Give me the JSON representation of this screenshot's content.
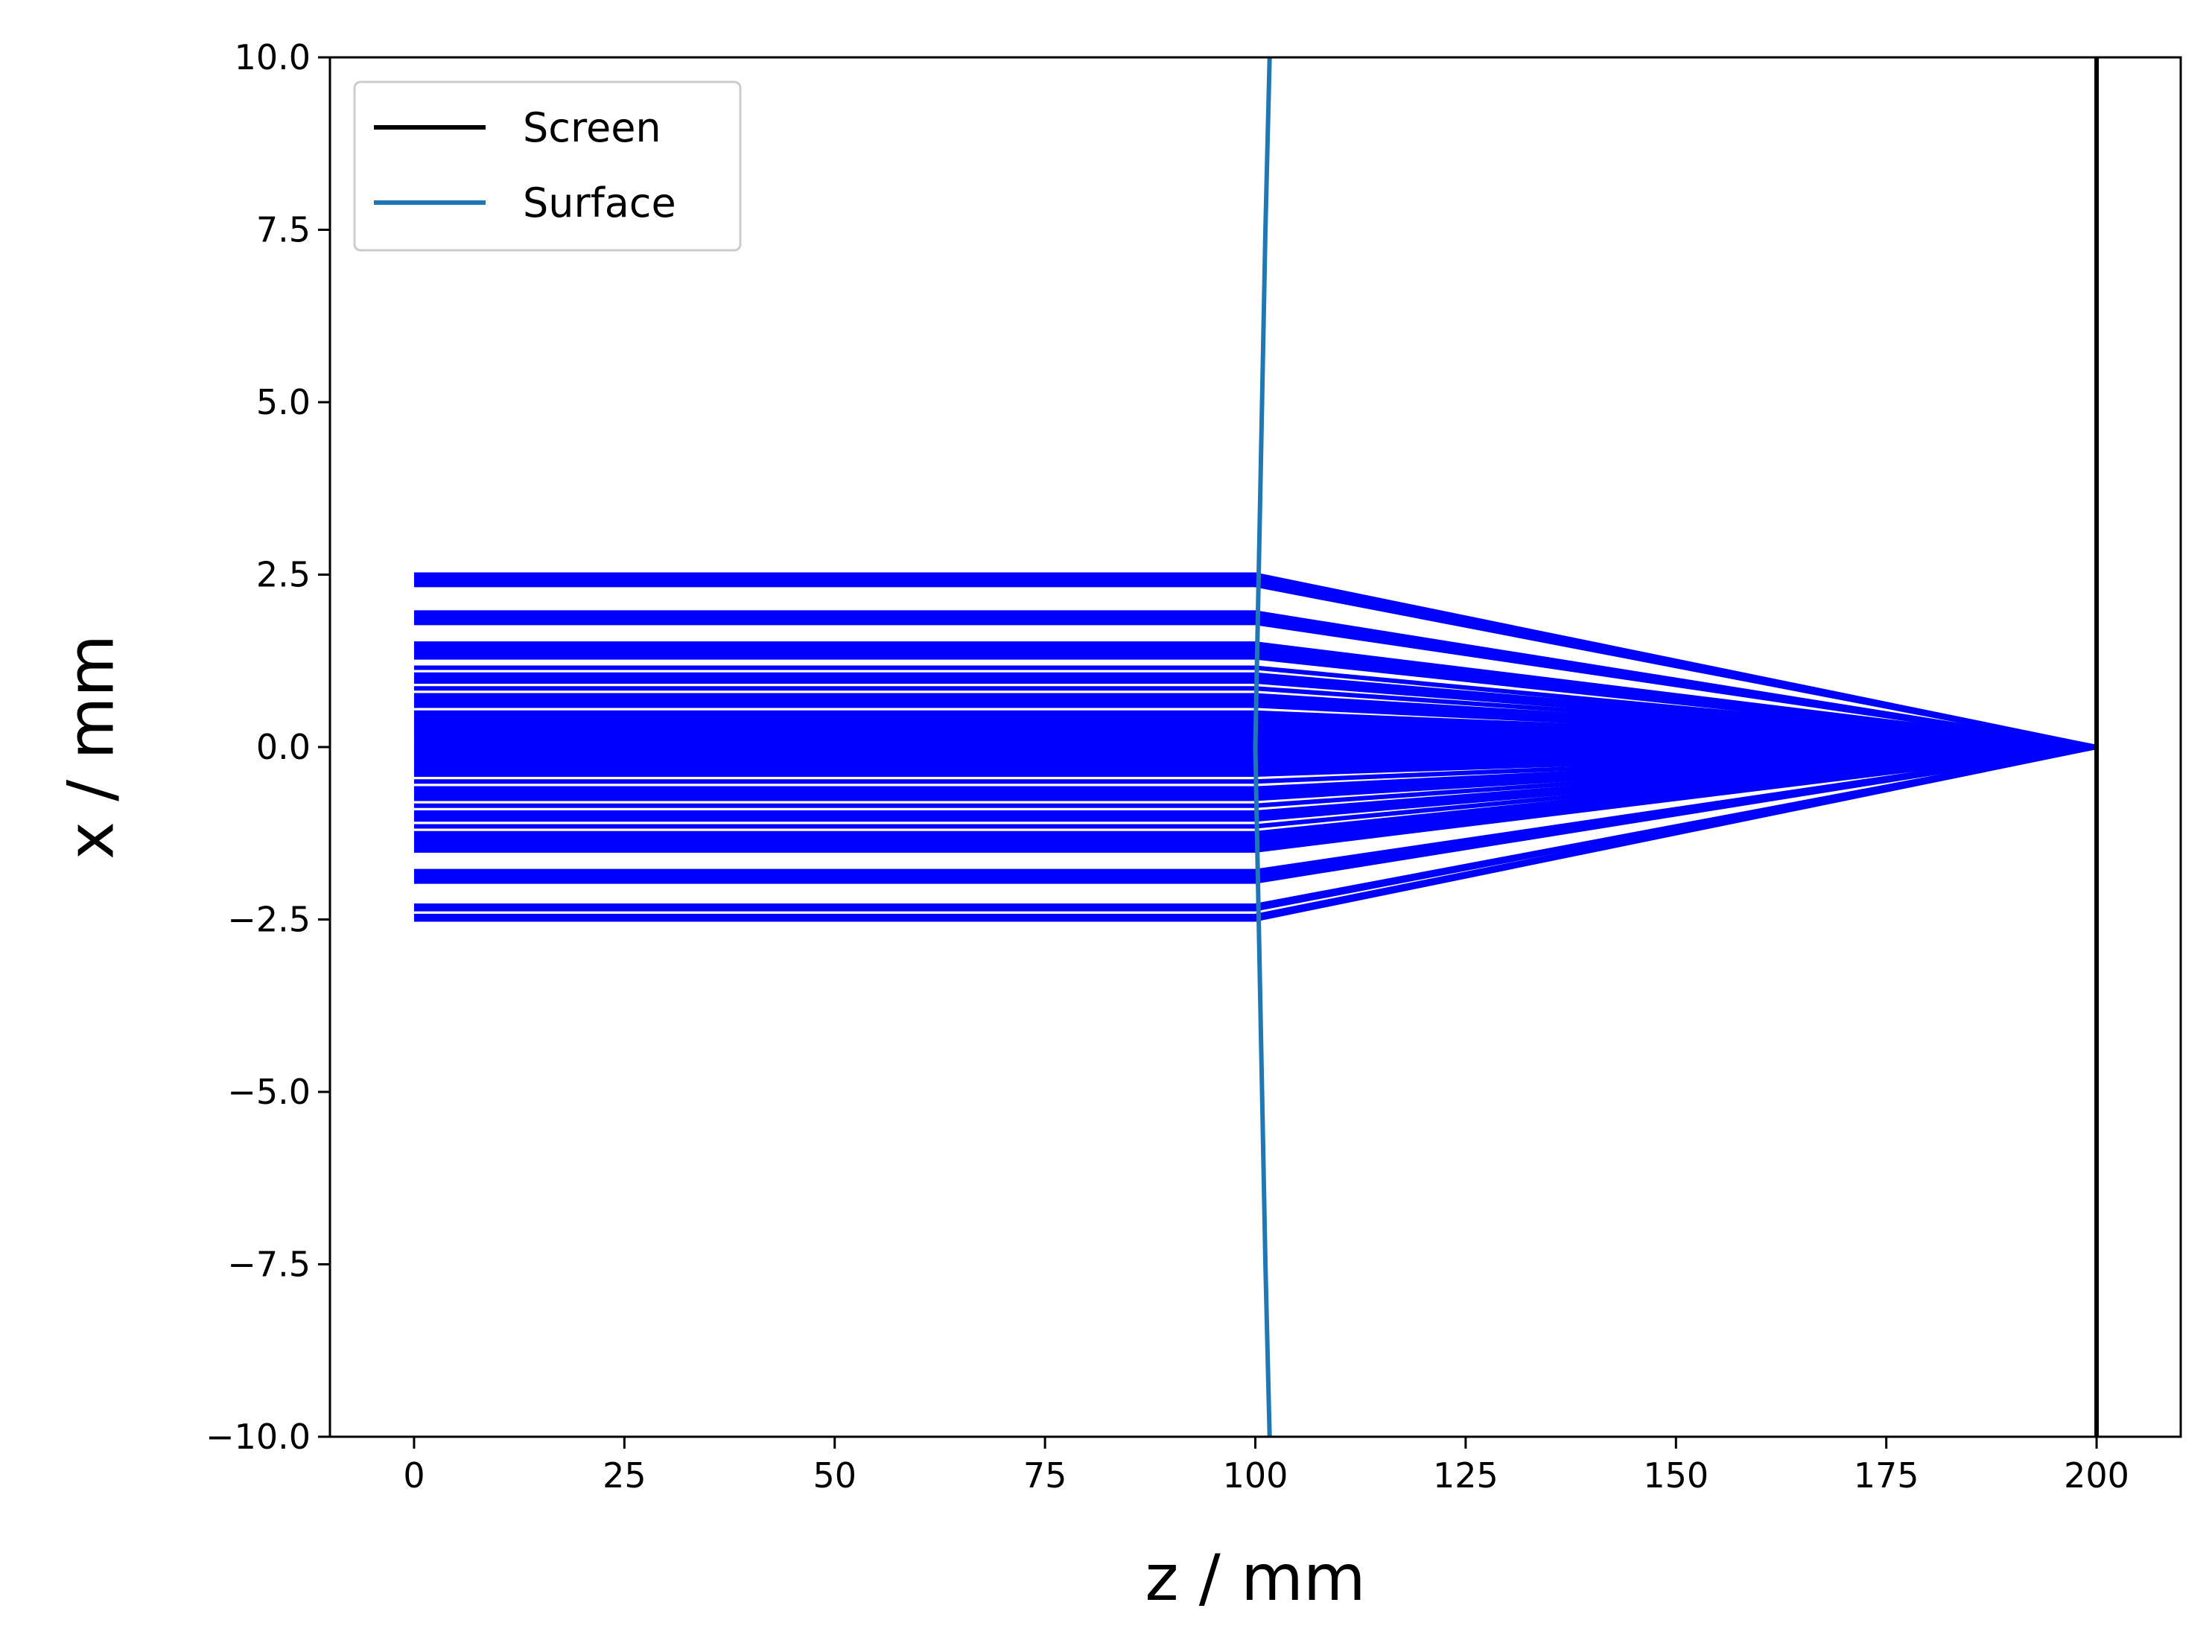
{
  "chart_data": {
    "type": "line",
    "title": "",
    "xlabel": "z / mm",
    "ylabel": "x / mm",
    "xlim": [
      -10,
      210
    ],
    "ylim": [
      -10,
      10
    ],
    "xticks": [
      0,
      25,
      50,
      75,
      100,
      125,
      150,
      175,
      200
    ],
    "xtick_labels": [
      "0",
      "25",
      "50",
      "75",
      "100",
      "125",
      "150",
      "175",
      "200"
    ],
    "yticks": [
      -10,
      -7.5,
      -5,
      -2.5,
      0,
      2.5,
      5,
      7.5,
      10
    ],
    "ytick_labels": [
      "−10.0",
      "−7.5",
      "−5.0",
      "−2.5",
      "0.0",
      "2.5",
      "5.0",
      "7.5",
      "10.0"
    ],
    "grid": false,
    "legend": {
      "placement": "top-left",
      "entries": [
        {
          "name": "Screen",
          "color": "#000000"
        },
        {
          "name": "Surface",
          "color": "#1f77b4"
        }
      ]
    },
    "screen": {
      "z": 200,
      "color": "#000000"
    },
    "surface": {
      "color": "#1f77b4",
      "points": [
        {
          "z": 101.7,
          "x": -10
        },
        {
          "z": 101.2,
          "x": -7.5
        },
        {
          "z": 100.8,
          "x": -5
        },
        {
          "z": 100.4,
          "x": -2.5
        },
        {
          "z": 100.0,
          "x": 0
        },
        {
          "z": 100.4,
          "x": 2.5
        },
        {
          "z": 100.8,
          "x": 5
        },
        {
          "z": 101.2,
          "x": 7.5
        },
        {
          "z": 101.7,
          "x": 10
        }
      ]
    },
    "rays": {
      "color": "#0000ff",
      "z_start": 0,
      "z_surface": 100,
      "z_focus": 200,
      "x_focus": 0,
      "heights": [
        2.5,
        2.45,
        2.4,
        2.35,
        1.95,
        1.9,
        1.85,
        1.8,
        1.5,
        1.45,
        1.4,
        1.35,
        1.3,
        1.15,
        1.05,
        1.0,
        0.95,
        0.85,
        0.75,
        0.7,
        0.65,
        0.6,
        0.5,
        0.45,
        0.4,
        0.35,
        0.3,
        0.25,
        0.2,
        0.15,
        0.1,
        0.05,
        0.0,
        -0.05,
        -0.1,
        -0.15,
        -0.2,
        -0.25,
        -0.3,
        -0.35,
        -0.4,
        -0.5,
        -0.6,
        -0.65,
        -0.7,
        -0.75,
        -0.85,
        -0.95,
        -1.0,
        -1.05,
        -1.15,
        -1.25,
        -1.3,
        -1.35,
        -1.4,
        -1.45,
        -1.5,
        -1.8,
        -1.85,
        -1.9,
        -1.95,
        -2.3,
        -2.35,
        -2.45,
        -2.5
      ]
    }
  }
}
